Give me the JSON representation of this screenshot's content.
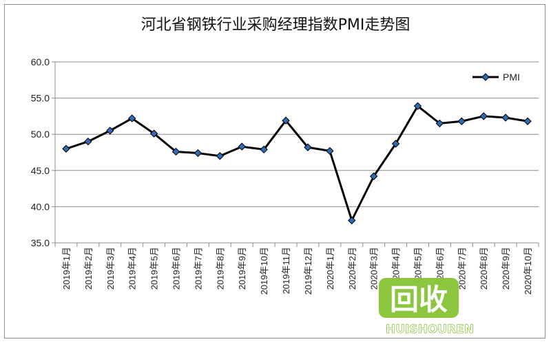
{
  "chart_data": {
    "type": "line",
    "title": "河北省钢铁行业采购经理指数PMI走势图",
    "categories": [
      "2019年1月",
      "2019年2月",
      "2019年3月",
      "2019年4月",
      "2019年5月",
      "2019年6月",
      "2019年7月",
      "2019年8月",
      "2019年9月",
      "2019年10月",
      "2019年11月",
      "2019年12月",
      "2020年1月",
      "2020年2月",
      "2020年3月",
      "2020年4月",
      "2020年5月",
      "2020年6月",
      "2020年7月",
      "2020年8月",
      "2020年9月",
      "2020年10月"
    ],
    "series": [
      {
        "name": "PMI",
        "values": [
          48.0,
          49.0,
          50.5,
          52.2,
          50.1,
          47.6,
          47.4,
          47.0,
          48.3,
          47.9,
          51.9,
          48.2,
          47.7,
          38.1,
          44.2,
          48.7,
          53.9,
          51.5,
          51.8,
          52.5,
          52.3,
          51.8
        ]
      }
    ],
    "yticks": [
      "60.0",
      "55.0",
      "50.0",
      "45.0",
      "40.0",
      "35.0"
    ],
    "ylim": [
      35,
      60
    ],
    "grid": true,
    "legend": "top-right",
    "line_color": "#000000",
    "marker_fill": "#2f6bb3"
  },
  "watermark": {
    "logo_text": "回收",
    "brand_text": "HUISHOUREN",
    "color": "#8cc63f"
  }
}
